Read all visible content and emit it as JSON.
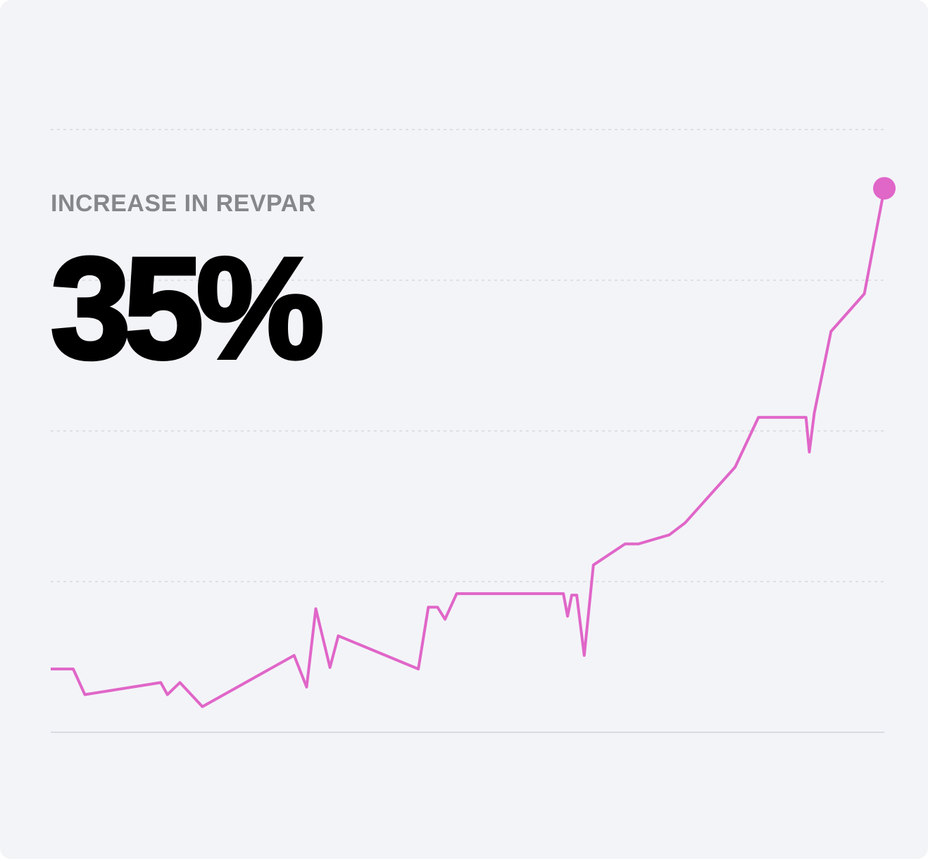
{
  "chart_data": {
    "type": "line",
    "title": "INCREASE IN REVPAR",
    "annotation": "35%",
    "x": [
      0,
      2.7,
      4.1,
      13.2,
      14.0,
      15.5,
      18.2,
      29.2,
      30.7,
      31.8,
      33.5,
      34.5,
      44.1,
      45.3,
      46.4,
      47.3,
      48.7,
      61.5,
      62.0,
      62.5,
      63.1,
      64.0,
      65.1,
      68.9,
      70.5,
      74.2,
      76.1,
      82.1,
      84.9,
      90.6,
      91.0,
      91.6,
      93.6,
      97.6,
      100
    ],
    "series": [
      {
        "name": "RevPAR",
        "color": "#e066c8",
        "values": [
          0.42,
          0.42,
          0.25,
          0.33,
          0.25,
          0.33,
          0.17,
          0.51,
          0.3,
          0.82,
          0.43,
          0.64,
          0.42,
          0.83,
          0.83,
          0.75,
          0.92,
          0.92,
          0.77,
          0.91,
          0.91,
          0.51,
          1.11,
          1.25,
          1.25,
          1.31,
          1.39,
          1.76,
          2.09,
          2.09,
          1.86,
          2.12,
          2.66,
          2.91,
          3.61
        ]
      }
    ],
    "xlim": [
      0,
      100
    ],
    "ylim": [
      0,
      4
    ],
    "yticks": [
      0,
      1,
      2,
      3,
      4
    ],
    "grid": true
  }
}
